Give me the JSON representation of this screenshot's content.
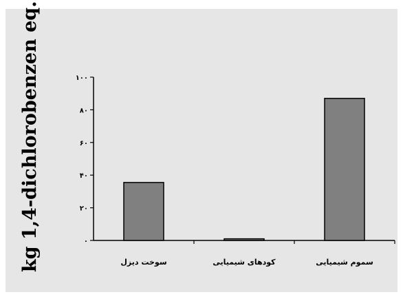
{
  "chart_data": {
    "type": "bar",
    "categories": [
      "سوخت دیزل",
      "کودهای شیمیایی",
      "سموم شیمیایی"
    ],
    "values": [
      35.5,
      1.0,
      87.0
    ],
    "ylabel": "kg 1,4-dichlorobenzen eq.",
    "xlabel": "",
    "title": "",
    "ylim": [
      0,
      100
    ],
    "yticks": [
      0,
      20,
      40,
      60,
      80,
      100
    ],
    "ytick_labels": [
      "۰",
      "۲۰",
      "۴۰",
      "۶۰",
      "۸۰",
      "۱۰۰"
    ],
    "grid": false,
    "legend": "none",
    "colors": {
      "bar": "#808080",
      "bar_stroke": "#000000",
      "background": "#e6e6e6",
      "axis": "#000000"
    }
  }
}
